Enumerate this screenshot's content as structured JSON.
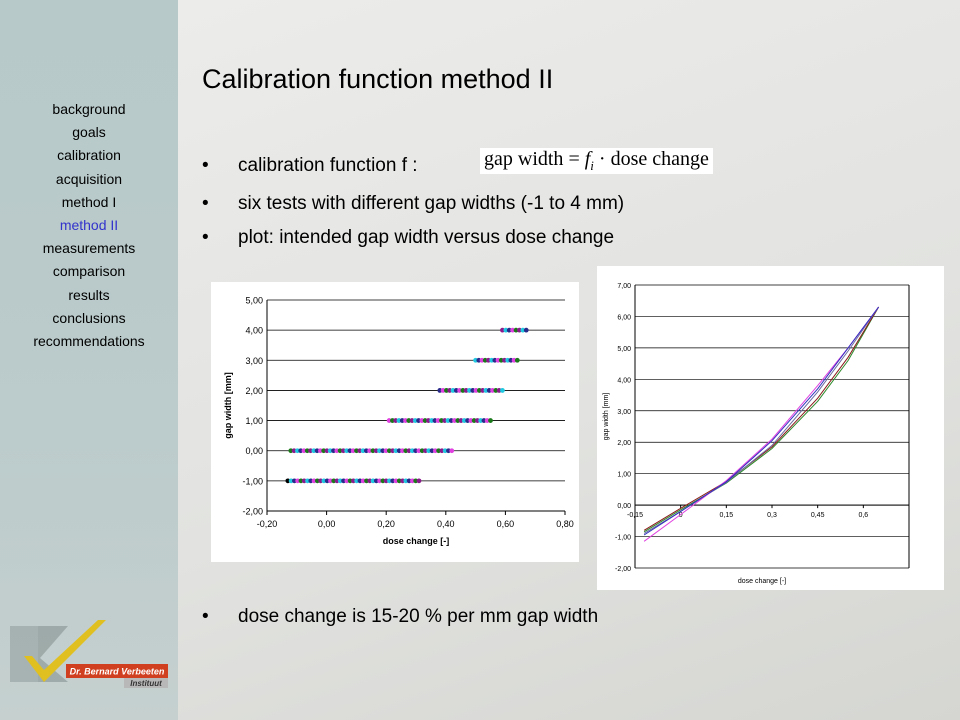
{
  "sidebar": {
    "items": [
      {
        "label": "background",
        "active": false
      },
      {
        "label": "goals",
        "active": false
      },
      {
        "label": "calibration",
        "active": false
      },
      {
        "label": "acquisition",
        "active": false
      },
      {
        "label": "method I",
        "active": false
      },
      {
        "label": "method II",
        "active": true
      },
      {
        "label": "measurements",
        "active": false
      },
      {
        "label": "comparison",
        "active": false
      },
      {
        "label": "results",
        "active": false
      },
      {
        "label": "conclusions",
        "active": false
      },
      {
        "label": "recommendations",
        "active": false
      }
    ],
    "logo_text_line1": "Dr. Bernard Verbeeten",
    "logo_text_line2": "Instituut"
  },
  "slide": {
    "title": "Calibration function method II",
    "bullets": [
      "calibration function f :",
      "six tests with different gap widths (-1 to 4 mm)",
      "plot: intended gap width versus dose change",
      "dose change is 15-20 % per mm gap width"
    ],
    "formula": {
      "lhs": "gap width",
      "eq": " = ",
      "coef": "f",
      "sub": "i",
      "dot": " · ",
      "rhs": "dose change"
    }
  },
  "chart_data": [
    {
      "type": "scatter",
      "xlabel": "dose change [-]",
      "ylabel": "gap width [mm]",
      "xlim": [
        -0.2,
        0.8
      ],
      "ylim": [
        -2.0,
        5.0
      ],
      "x_ticks": [
        "-0,20",
        "0,00",
        "0,20",
        "0,40",
        "0,60",
        "0,80"
      ],
      "y_ticks": [
        "-2,00",
        "-1,00",
        "0,00",
        "1,00",
        "2,00",
        "3,00",
        "4,00",
        "5,00"
      ],
      "grid": "horizontal",
      "series_colors": [
        "#1a7a1a",
        "#2a2a8a",
        "#8b1a8b",
        "#e040e0",
        "#20c8e0"
      ],
      "clusters": [
        {
          "y": -1,
          "x_min": -0.13,
          "x_max": 0.31
        },
        {
          "y": 0,
          "x_min": -0.12,
          "x_max": 0.42
        },
        {
          "y": 1,
          "x_min": 0.21,
          "x_max": 0.55
        },
        {
          "y": 2,
          "x_min": 0.38,
          "x_max": 0.59
        },
        {
          "y": 3,
          "x_min": 0.5,
          "x_max": 0.64
        },
        {
          "y": 4,
          "x_min": 0.59,
          "x_max": 0.67
        }
      ]
    },
    {
      "type": "line",
      "xlabel": "dose change [-]",
      "ylabel": "gap width [mm]",
      "xlim": [
        -0.15,
        0.75
      ],
      "ylim": [
        -2.0,
        7.0
      ],
      "x_ticks": [
        "-0,15",
        "0",
        "0,15",
        "0,3",
        "0,45",
        "0,6"
      ],
      "x_tick_values": [
        -0.15,
        0,
        0.15,
        0.3,
        0.45,
        0.6
      ],
      "y_ticks": [
        "-2,00",
        "-1,00",
        "0,00",
        "1,00",
        "2,00",
        "3,00",
        "4,00",
        "5,00",
        "6,00",
        "7,00"
      ],
      "grid": "horizontal",
      "series": [
        {
          "color": "#2a8a2a",
          "points": [
            [
              -0.12,
              -0.85
            ],
            [
              0.0,
              -0.15
            ],
            [
              0.15,
              0.7
            ],
            [
              0.3,
              1.8
            ],
            [
              0.45,
              3.3
            ],
            [
              0.55,
              4.6
            ],
            [
              0.65,
              6.3
            ]
          ]
        },
        {
          "color": "#8b1a1a",
          "points": [
            [
              -0.12,
              -0.8
            ],
            [
              0.0,
              -0.1
            ],
            [
              0.15,
              0.75
            ],
            [
              0.3,
              1.85
            ],
            [
              0.45,
              3.4
            ],
            [
              0.55,
              4.7
            ],
            [
              0.65,
              6.3
            ]
          ]
        },
        {
          "color": "#6a6aa0",
          "points": [
            [
              -0.12,
              -0.9
            ],
            [
              0.0,
              -0.2
            ],
            [
              0.15,
              0.72
            ],
            [
              0.3,
              1.9
            ],
            [
              0.45,
              3.6
            ],
            [
              0.55,
              4.9
            ],
            [
              0.65,
              6.3
            ]
          ]
        },
        {
          "color": "#e040e0",
          "points": [
            [
              -0.12,
              -1.15
            ],
            [
              0.0,
              -0.3
            ],
            [
              0.15,
              0.78
            ],
            [
              0.3,
              2.1
            ],
            [
              0.45,
              3.8
            ],
            [
              0.55,
              5.0
            ],
            [
              0.65,
              6.3
            ]
          ]
        },
        {
          "color": "#3030c0",
          "points": [
            [
              -0.12,
              -0.95
            ],
            [
              0.0,
              -0.2
            ],
            [
              0.15,
              0.74
            ],
            [
              0.3,
              2.05
            ],
            [
              0.45,
              3.7
            ],
            [
              0.55,
              5.0
            ],
            [
              0.65,
              6.3
            ]
          ]
        }
      ]
    }
  ]
}
